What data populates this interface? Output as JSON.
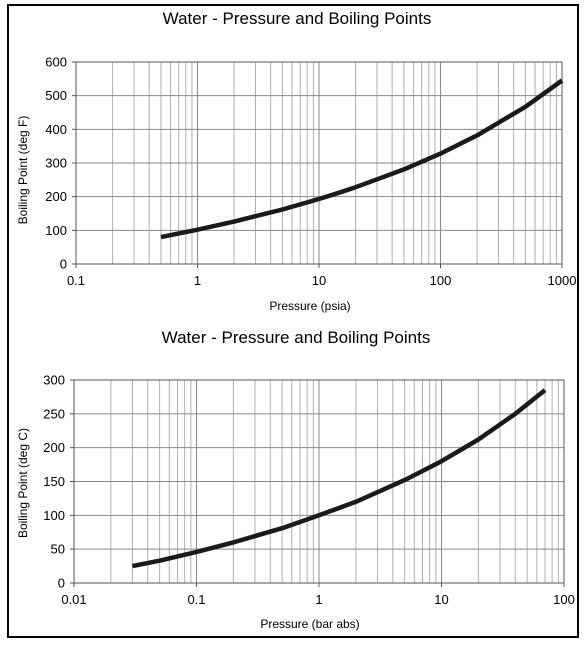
{
  "chart_data": [
    {
      "type": "line",
      "title": "Water - Pressure and Boiling Points",
      "xlabel": "Pressure (psia)",
      "ylabel": "Boiling Point (deg F)",
      "xscale": "log",
      "xlim": [
        0.1,
        1000
      ],
      "ylim": [
        0,
        600
      ],
      "x_ticks": [
        "0.1",
        "1",
        "10",
        "100",
        "1000"
      ],
      "y_ticks": [
        "0",
        "100",
        "200",
        "300",
        "400",
        "500",
        "600"
      ],
      "grid": true,
      "legend": "none",
      "line_color": "#1a1a1a",
      "series": [
        {
          "x": [
            0.5,
            1,
            2,
            5,
            10,
            14.7,
            20,
            50,
            100,
            200,
            500,
            1000
          ],
          "y": [
            80,
            102,
            126,
            162,
            193,
            212,
            228,
            281,
            328,
            382,
            467,
            545
          ]
        }
      ]
    },
    {
      "type": "line",
      "title": "Water - Pressure and Boiling Points",
      "xlabel": "Pressure (bar abs)",
      "ylabel": "Boiling Point (deg C)",
      "xscale": "log",
      "xlim": [
        0.01,
        100
      ],
      "ylim": [
        0,
        300
      ],
      "x_ticks": [
        "0.01",
        "0.1",
        "1",
        "10",
        "100"
      ],
      "y_ticks": [
        "0",
        "50",
        "100",
        "150",
        "200",
        "250",
        "300"
      ],
      "grid": true,
      "legend": "none",
      "line_color": "#1a1a1a",
      "series": [
        {
          "x": [
            0.03,
            0.05,
            0.1,
            0.2,
            0.5,
            1,
            2,
            5,
            10,
            20,
            40,
            70
          ],
          "y": [
            25,
            33,
            46,
            60,
            81,
            100,
            120,
            152,
            180,
            212,
            250,
            285
          ]
        }
      ]
    }
  ]
}
